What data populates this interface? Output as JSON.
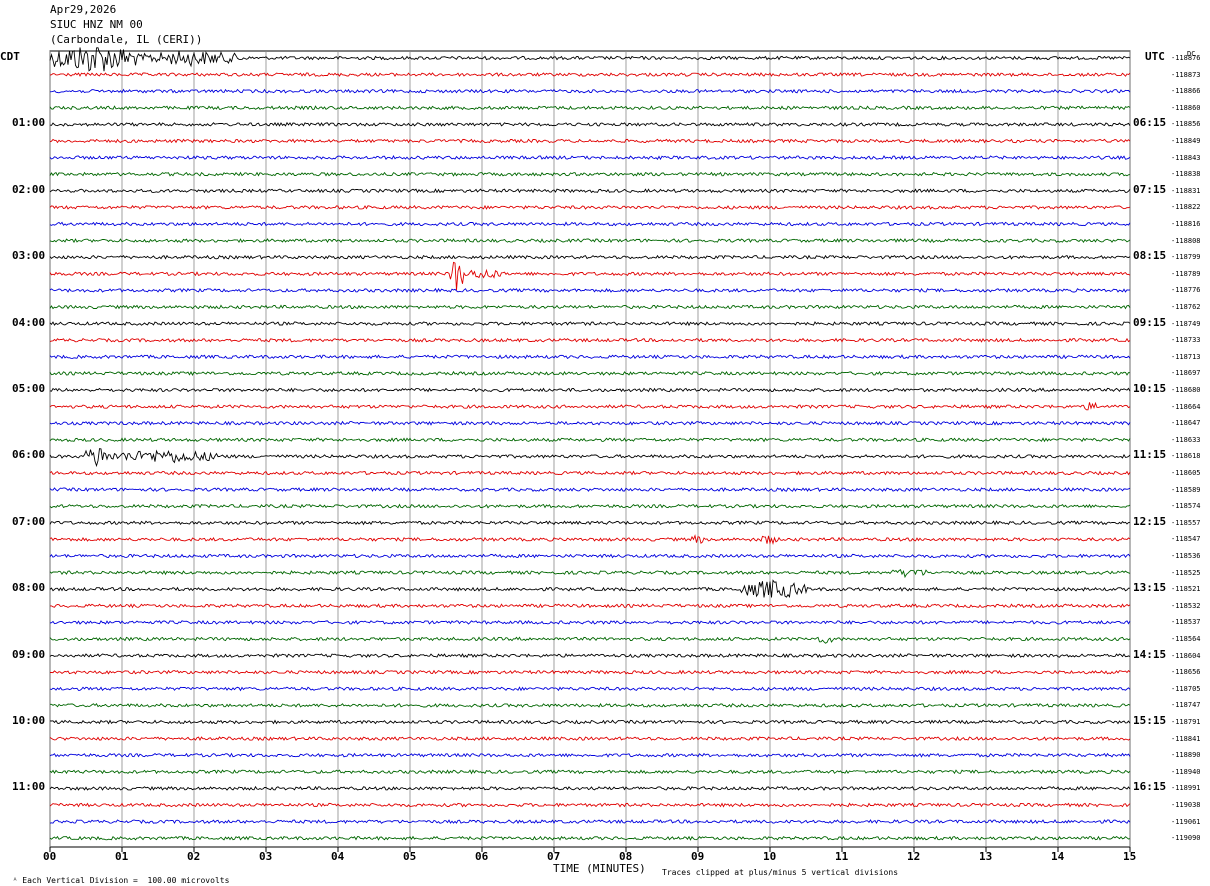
{
  "header": {
    "date": "Apr29,2026",
    "station": "SIUC HNZ NM 00",
    "location": "(Carbondale, IL (CERI))"
  },
  "left_axis_label": "CDT",
  "right_axis_label": "UTC",
  "dc_label": "DC",
  "footer": {
    "left": "Each Vertical Division =  100.00 microvolts",
    "xlabel": "TIME (MINUTES)",
    "right": "Traces clipped at plus/minus 5 vertical divisions"
  },
  "chart_data": {
    "type": "line",
    "title": "SIUC HNZ NM 00",
    "xlabel": "TIME (MINUTES)",
    "ylabel": "",
    "xlim": [
      0,
      15
    ],
    "x_ticks": [
      "00",
      "01",
      "02",
      "03",
      "04",
      "05",
      "06",
      "07",
      "08",
      "09",
      "10",
      "11",
      "12",
      "13",
      "14",
      "15"
    ],
    "grid": true,
    "trace_colors": [
      "#000000",
      "#e00000",
      "#0000dd",
      "#006600"
    ],
    "left_time_labels": [
      "01:00",
      "02:00",
      "03:00",
      "04:00",
      "05:00",
      "06:00",
      "07:00",
      "08:00",
      "09:00",
      "10:00",
      "11:00"
    ],
    "right_time_labels": [
      "06:15",
      "07:15",
      "08:15",
      "09:15",
      "10:15",
      "11:15",
      "12:15",
      "13:15",
      "14:15",
      "15:15",
      "16:15"
    ],
    "trace_offsets": [
      "-118876",
      "-118873",
      "-118866",
      "-118860",
      "-118856",
      "-118849",
      "-118843",
      "-118838",
      "-118831",
      "-118822",
      "-118816",
      "-118808",
      "-118799",
      "-118789",
      "-118776",
      "-118762",
      "-118749",
      "-118733",
      "-118713",
      "-118697",
      "-118680",
      "-118664",
      "-118647",
      "-118633",
      "-118618",
      "-118605",
      "-118589",
      "-118574",
      "-118557",
      "-118547",
      "-118536",
      "-118525",
      "-118521",
      "-118532",
      "-118537",
      "-118564",
      "-118604",
      "-118656",
      "-118705",
      "-118747",
      "-118791",
      "-118841",
      "-118890",
      "-118940",
      "-118991",
      "-119038",
      "-119061",
      "-119090"
    ],
    "events": [
      {
        "trace": 0,
        "x": 0.0,
        "x_end": 1.2,
        "amplitude": 5
      },
      {
        "trace": 0,
        "x": 1.2,
        "x_end": 2.7,
        "amplitude": 2.5
      },
      {
        "trace": 13,
        "x": 5.55,
        "x_end": 5.75,
        "amplitude": 6
      },
      {
        "trace": 13,
        "x": 5.75,
        "x_end": 6.3,
        "amplitude": 1.8
      },
      {
        "trace": 24,
        "x": 0.5,
        "x_end": 0.8,
        "amplitude": 4
      },
      {
        "trace": 24,
        "x": 0.8,
        "x_end": 2.4,
        "amplitude": 2.2
      },
      {
        "trace": 29,
        "x": 8.9,
        "x_end": 9.1,
        "amplitude": 1.6
      },
      {
        "trace": 29,
        "x": 9.85,
        "x_end": 10.1,
        "amplitude": 1.8
      },
      {
        "trace": 31,
        "x": 11.7,
        "x_end": 12.2,
        "amplitude": 1.6
      },
      {
        "trace": 32,
        "x": 9.6,
        "x_end": 10.5,
        "amplitude": 3.2
      },
      {
        "trace": 35,
        "x": 10.6,
        "x_end": 10.9,
        "amplitude": 1.5
      },
      {
        "trace": 21,
        "x": 14.35,
        "x_end": 14.6,
        "amplitude": 1.6
      }
    ]
  }
}
